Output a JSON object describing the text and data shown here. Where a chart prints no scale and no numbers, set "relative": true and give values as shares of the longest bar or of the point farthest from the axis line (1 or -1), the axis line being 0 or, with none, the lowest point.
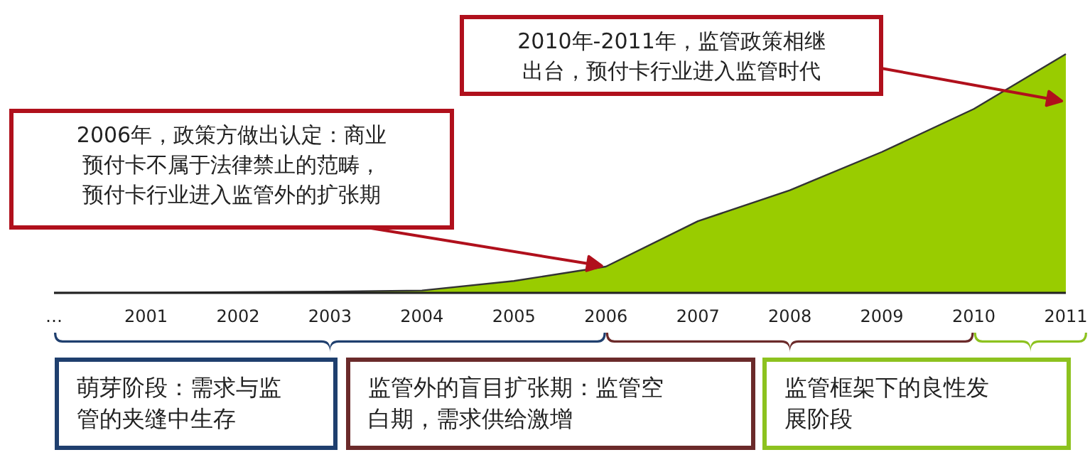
{
  "chart_data": {
    "type": "area",
    "relative": true,
    "categories": [
      "…",
      "2001",
      "2002",
      "2003",
      "2004",
      "2005",
      "2006",
      "2007",
      "2008",
      "2009",
      "2010",
      "2011"
    ],
    "series": [
      {
        "color": "#99cc00",
        "values": [
          0,
          0.001,
          0.003,
          0.005,
          0.01,
          0.05,
          0.11,
          0.3,
          0.43,
          0.59,
          0.77,
          1
        ]
      }
    ],
    "annotations": [
      "2006年，政策方做出认定：商业预付卡不属于法律禁止的范畴，预付卡行业进入监管外的扩张期",
      "2010年-2011年，监管政策相继出台，预付卡行业进入监管时代",
      "萌芽阶段：需求与监管的夹缝中生存",
      "监管外的盲目扩张期：监管空白期，需求供给激增",
      "监管框架下的良性发展阶段"
    ]
  }
}
